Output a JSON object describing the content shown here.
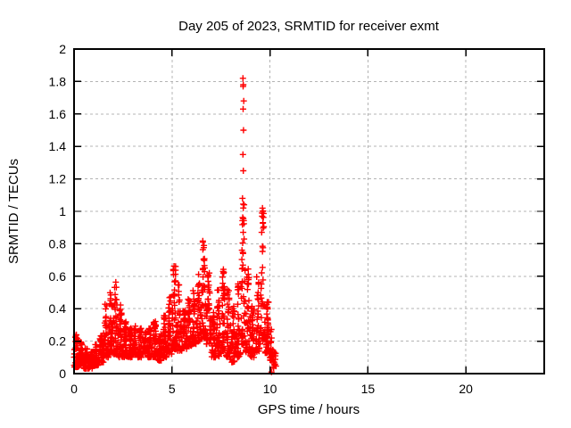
{
  "chart_data": {
    "type": "scatter",
    "title": "Day 205 of 2023, SRMTID for receiver exmt",
    "xlabel": "GPS time / hours",
    "ylabel": "SRMTID / TECUs",
    "xlim": [
      0,
      24
    ],
    "ylim": [
      0,
      2
    ],
    "xtick_labels": [
      "0",
      "5",
      "10",
      "15",
      "20"
    ],
    "ytick_labels": [
      "0",
      "0.2",
      "0.4",
      "0.6",
      "0.8",
      "1",
      "1.2",
      "1.4",
      "1.6",
      "1.8",
      "2"
    ],
    "grid": true,
    "legend": "none",
    "marker": "plus",
    "marker_color": "#ff0000",
    "grid_color": "#b4b4b4",
    "border_color": "#000000",
    "background_color": "#ffffff",
    "x_data_range": [
      0,
      10.32
    ],
    "seed": 42,
    "density_bands": [
      [
        0.0,
        0.25,
        0.04,
        0.26,
        45
      ],
      [
        0.25,
        0.5,
        0.05,
        0.22,
        40
      ],
      [
        0.5,
        0.75,
        0.03,
        0.16,
        38
      ],
      [
        0.75,
        1.0,
        0.03,
        0.14,
        38
      ],
      [
        1.0,
        1.25,
        0.05,
        0.18,
        38
      ],
      [
        1.25,
        1.5,
        0.07,
        0.24,
        38
      ],
      [
        1.5,
        1.75,
        0.1,
        0.43,
        42
      ],
      [
        1.75,
        2.0,
        0.12,
        0.5,
        45
      ],
      [
        2.0,
        2.25,
        0.12,
        0.57,
        45
      ],
      [
        2.25,
        2.5,
        0.1,
        0.44,
        40
      ],
      [
        2.5,
        2.75,
        0.1,
        0.32,
        38
      ],
      [
        2.75,
        3.0,
        0.1,
        0.28,
        38
      ],
      [
        3.0,
        3.25,
        0.12,
        0.3,
        38
      ],
      [
        3.25,
        3.5,
        0.1,
        0.28,
        38
      ],
      [
        3.5,
        3.75,
        0.12,
        0.26,
        36
      ],
      [
        3.75,
        4.0,
        0.1,
        0.28,
        38
      ],
      [
        4.0,
        4.25,
        0.1,
        0.33,
        38
      ],
      [
        4.25,
        4.5,
        0.08,
        0.26,
        38
      ],
      [
        4.5,
        4.75,
        0.1,
        0.36,
        38
      ],
      [
        4.75,
        5.0,
        0.12,
        0.48,
        40
      ],
      [
        5.0,
        5.25,
        0.15,
        0.67,
        45
      ],
      [
        5.25,
        5.5,
        0.14,
        0.56,
        40
      ],
      [
        5.5,
        5.75,
        0.15,
        0.42,
        38
      ],
      [
        5.75,
        6.0,
        0.17,
        0.46,
        40
      ],
      [
        6.0,
        6.25,
        0.18,
        0.52,
        40
      ],
      [
        6.25,
        6.5,
        0.2,
        0.62,
        42
      ],
      [
        6.5,
        6.75,
        0.22,
        0.83,
        45
      ],
      [
        6.75,
        7.0,
        0.18,
        0.62,
        40
      ],
      [
        7.0,
        7.25,
        0.1,
        0.38,
        40
      ],
      [
        7.25,
        7.5,
        0.1,
        0.55,
        40
      ],
      [
        7.5,
        7.75,
        0.13,
        0.66,
        40
      ],
      [
        7.75,
        8.0,
        0.1,
        0.52,
        40
      ],
      [
        8.0,
        8.25,
        0.07,
        0.42,
        40
      ],
      [
        8.25,
        8.5,
        0.1,
        0.58,
        40
      ],
      [
        8.5,
        8.75,
        0.18,
        1.1,
        48
      ],
      [
        8.75,
        9.0,
        0.13,
        0.65,
        40
      ],
      [
        9.0,
        9.25,
        0.1,
        0.45,
        36
      ],
      [
        9.25,
        9.5,
        0.13,
        0.6,
        36
      ],
      [
        9.5,
        9.75,
        0.2,
        1.02,
        44
      ],
      [
        9.75,
        10.0,
        0.12,
        0.45,
        38
      ],
      [
        10.0,
        10.15,
        0.08,
        0.32,
        20
      ],
      [
        10.15,
        10.32,
        0.02,
        0.18,
        14
      ]
    ],
    "peak_points": [
      [
        8.62,
        1.82
      ],
      [
        8.64,
        1.78
      ],
      [
        8.63,
        1.77
      ],
      [
        8.66,
        1.68
      ],
      [
        8.63,
        1.63
      ],
      [
        8.65,
        1.5
      ],
      [
        8.62,
        1.35
      ],
      [
        8.64,
        1.25
      ],
      [
        8.6,
        1.08
      ],
      [
        8.68,
        1.04
      ],
      [
        9.62,
        1.02
      ],
      [
        9.6,
        0.97
      ],
      [
        9.64,
        0.93
      ],
      [
        10.08,
        0.01
      ]
    ]
  }
}
